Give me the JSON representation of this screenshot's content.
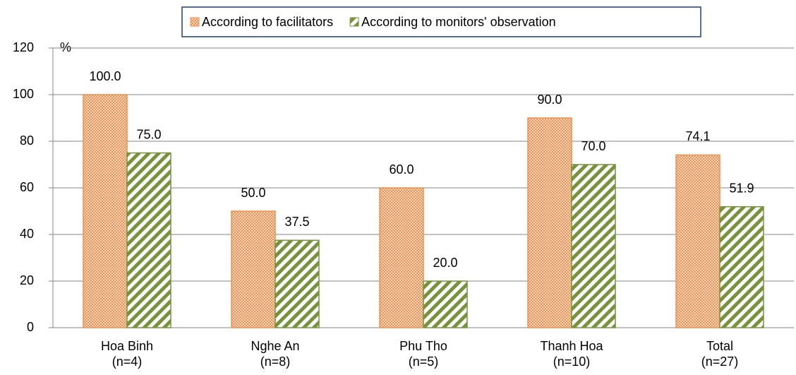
{
  "chart_data": {
    "type": "bar",
    "categories": [
      "Hoa Binh\n(n=4)",
      "Nghe An\n(n=8)",
      "Phu Tho\n(n=5)",
      "Thanh Hoa\n(n=10)",
      "Total\n(n=27)"
    ],
    "series": [
      {
        "name": "According to facilitators",
        "color": "#f0904f",
        "values": [
          100,
          50,
          60,
          90,
          74.1
        ],
        "value_labels": [
          "100.0",
          "50.0",
          "60.0",
          "90.0",
          "74.1"
        ]
      },
      {
        "name": "According to monitors' observation",
        "color": "#77933c",
        "values": [
          75,
          37.5,
          20,
          70,
          51.9
        ],
        "value_labels": [
          "75.0",
          "37.5",
          "20.0",
          "70.0",
          "51.9"
        ]
      }
    ],
    "y_label": "%",
    "ylim": [
      0,
      120
    ],
    "yticks": [
      0,
      20,
      40,
      60,
      80,
      100,
      120
    ],
    "grid": true,
    "legend": "top"
  }
}
